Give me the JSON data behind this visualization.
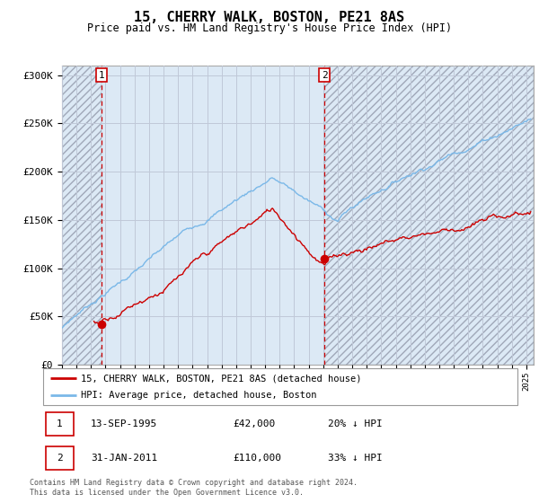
{
  "title": "15, CHERRY WALK, BOSTON, PE21 8AS",
  "subtitle": "Price paid vs. HM Land Registry's House Price Index (HPI)",
  "ylim": [
    0,
    310000
  ],
  "xlim_start": 1993.0,
  "xlim_end": 2025.5,
  "purchase1_date": 1995.706,
  "purchase1_price": 42000,
  "purchase2_date": 2011.083,
  "purchase2_price": 110000,
  "line1_label": "15, CHERRY WALK, BOSTON, PE21 8AS (detached house)",
  "line2_label": "HPI: Average price, detached house, Boston",
  "note1_date": "13-SEP-1995",
  "note1_price": "£42,000",
  "note1_hpi": "20% ↓ HPI",
  "note2_date": "31-JAN-2011",
  "note2_price": "£110,000",
  "note2_hpi": "33% ↓ HPI",
  "footer": "Contains HM Land Registry data © Crown copyright and database right 2024.\nThis data is licensed under the Open Government Licence v3.0.",
  "hpi_color": "#7ab8e8",
  "price_color": "#cc0000",
  "background_color": "#dce9f5",
  "grid_color": "#c0c8d8"
}
